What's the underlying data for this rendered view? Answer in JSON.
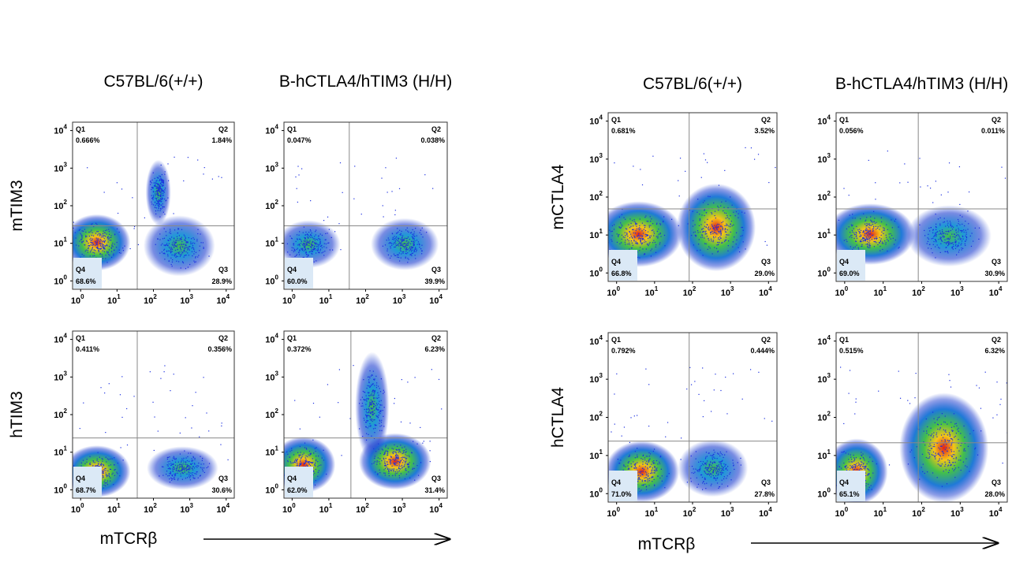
{
  "figures": [
    {
      "column_titles": [
        "C57BL/6(+/+)",
        "B-hCTLA4/hTIM3 (H/H)"
      ],
      "row_labels": [
        "mTIM3",
        "hTIM3"
      ],
      "x_label": "mTCRβ",
      "plots": [
        {
          "q1": {
            "label": "Q1",
            "value": "0.666%"
          },
          "q2": {
            "label": "Q2",
            "value": "1.84%"
          },
          "q4": {
            "label": "Q4",
            "value": "68.6%"
          },
          "q3": {
            "label": "Q3",
            "value": "28.9%"
          }
        },
        {
          "q1": {
            "label": "Q1",
            "value": "0.047%"
          },
          "q2": {
            "label": "Q2",
            "value": "0.038%"
          },
          "q4": {
            "label": "Q4",
            "value": "60.0%"
          },
          "q3": {
            "label": "Q3",
            "value": "39.9%"
          }
        },
        {
          "q1": {
            "label": "Q1",
            "value": "0.411%"
          },
          "q2": {
            "label": "Q2",
            "value": "0.356%"
          },
          "q4": {
            "label": "Q4",
            "value": "68.7%"
          },
          "q3": {
            "label": "Q3",
            "value": "30.6%"
          }
        },
        {
          "q1": {
            "label": "Q1",
            "value": "0.372%"
          },
          "q2": {
            "label": "Q2",
            "value": "6.23%"
          },
          "q4": {
            "label": "Q4",
            "value": "62.0%"
          },
          "q3": {
            "label": "Q3",
            "value": "31.4%"
          }
        }
      ]
    },
    {
      "column_titles": [
        "C57BL/6(+/+)",
        "B-hCTLA4/hTIM3 (H/H)"
      ],
      "row_labels": [
        "mCTLA4",
        "hCTLA4"
      ],
      "x_label": "mTCRβ",
      "plots": [
        {
          "q1": {
            "label": "Q1",
            "value": "0.681%"
          },
          "q2": {
            "label": "Q2",
            "value": "3.52%"
          },
          "q4": {
            "label": "Q4",
            "value": "66.8%"
          },
          "q3": {
            "label": "Q3",
            "value": "29.0%"
          }
        },
        {
          "q1": {
            "label": "Q1",
            "value": "0.056%"
          },
          "q2": {
            "label": "Q2",
            "value": "0.011%"
          },
          "q4": {
            "label": "Q4",
            "value": "69.0%"
          },
          "q3": {
            "label": "Q3",
            "value": "30.9%"
          }
        },
        {
          "q1": {
            "label": "Q1",
            "value": "0.792%"
          },
          "q2": {
            "label": "Q2",
            "value": "0.444%"
          },
          "q4": {
            "label": "Q4",
            "value": "71.0%"
          },
          "q3": {
            "label": "Q3",
            "value": "27.8%"
          }
        },
        {
          "q1": {
            "label": "Q1",
            "value": "0.515%"
          },
          "q2": {
            "label": "Q2",
            "value": "6.32%"
          },
          "q4": {
            "label": "Q4",
            "value": "65.1%"
          },
          "q3": {
            "label": "Q3",
            "value": "28.0%"
          }
        }
      ]
    }
  ],
  "ticks": [
    {
      "base": "10",
      "exp": "0"
    },
    {
      "base": "10",
      "exp": "1"
    },
    {
      "base": "10",
      "exp": "2"
    },
    {
      "base": "10",
      "exp": "3"
    },
    {
      "base": "10",
      "exp": "4"
    }
  ]
}
